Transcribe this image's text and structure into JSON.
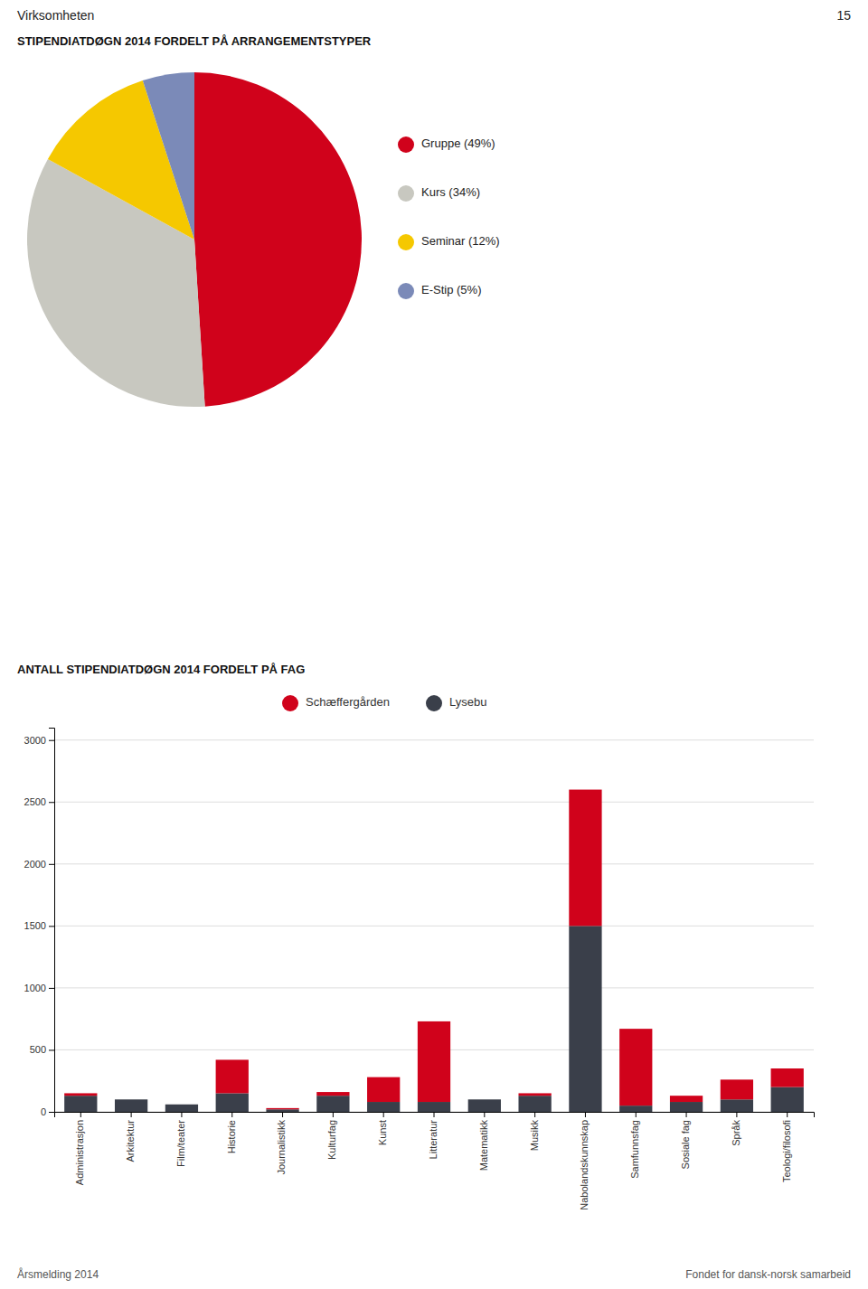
{
  "chart_data": [
    {
      "type": "pie",
      "title": "STIPENDIATDØGN 2014 FORDELT PÅ ARRANGEMENTSTYPER",
      "categories": [
        "Gruppe (49%)",
        "Kurs (34%)",
        "Seminar (12%)",
        "E-Stip (5%)"
      ],
      "values": [
        49,
        34,
        12,
        5
      ],
      "colors": [
        "#d0021b",
        "#c8c8c0",
        "#f5c800",
        "#7b8ab8"
      ],
      "legend": "right",
      "annotations": [
        "15",
        "Virksomheten",
        "Årsmelding 2014",
        "Fondet for dansk-norsk samarbeid"
      ]
    },
    {
      "type": "bar",
      "title": "ANTALL STIPENDIATDØGN 2014 FORDELT PÅ FAG",
      "categories": [
        "Administrasjon",
        "Arkitektur",
        "Film/teater",
        "Historie",
        "Journalistikk",
        "Kulturfag",
        "Kunst",
        "Litteratur",
        "Matematikk",
        "Musikk",
        "Nabolandskunnskap",
        "Samfunnsfag",
        "Sosiale fag",
        "Språk",
        "Teologi/filosofi"
      ],
      "series": [
        {
          "name": "Lysebu",
          "color": "#3a3f4a",
          "values": [
            130,
            100,
            60,
            150,
            20,
            130,
            80,
            80,
            100,
            130,
            1500,
            50,
            80,
            100,
            200
          ]
        },
        {
          "name": "Schæffergården",
          "color": "#d0021b",
          "values": [
            20,
            0,
            0,
            270,
            10,
            30,
            200,
            650,
            0,
            20,
            1100,
            620,
            50,
            160,
            150
          ]
        }
      ],
      "stacked": true,
      "ylim": [
        0,
        3100
      ],
      "yticks": [
        0,
        500,
        1000,
        1500,
        2000,
        2500,
        3000
      ],
      "grid": true,
      "legend": "top"
    }
  ]
}
